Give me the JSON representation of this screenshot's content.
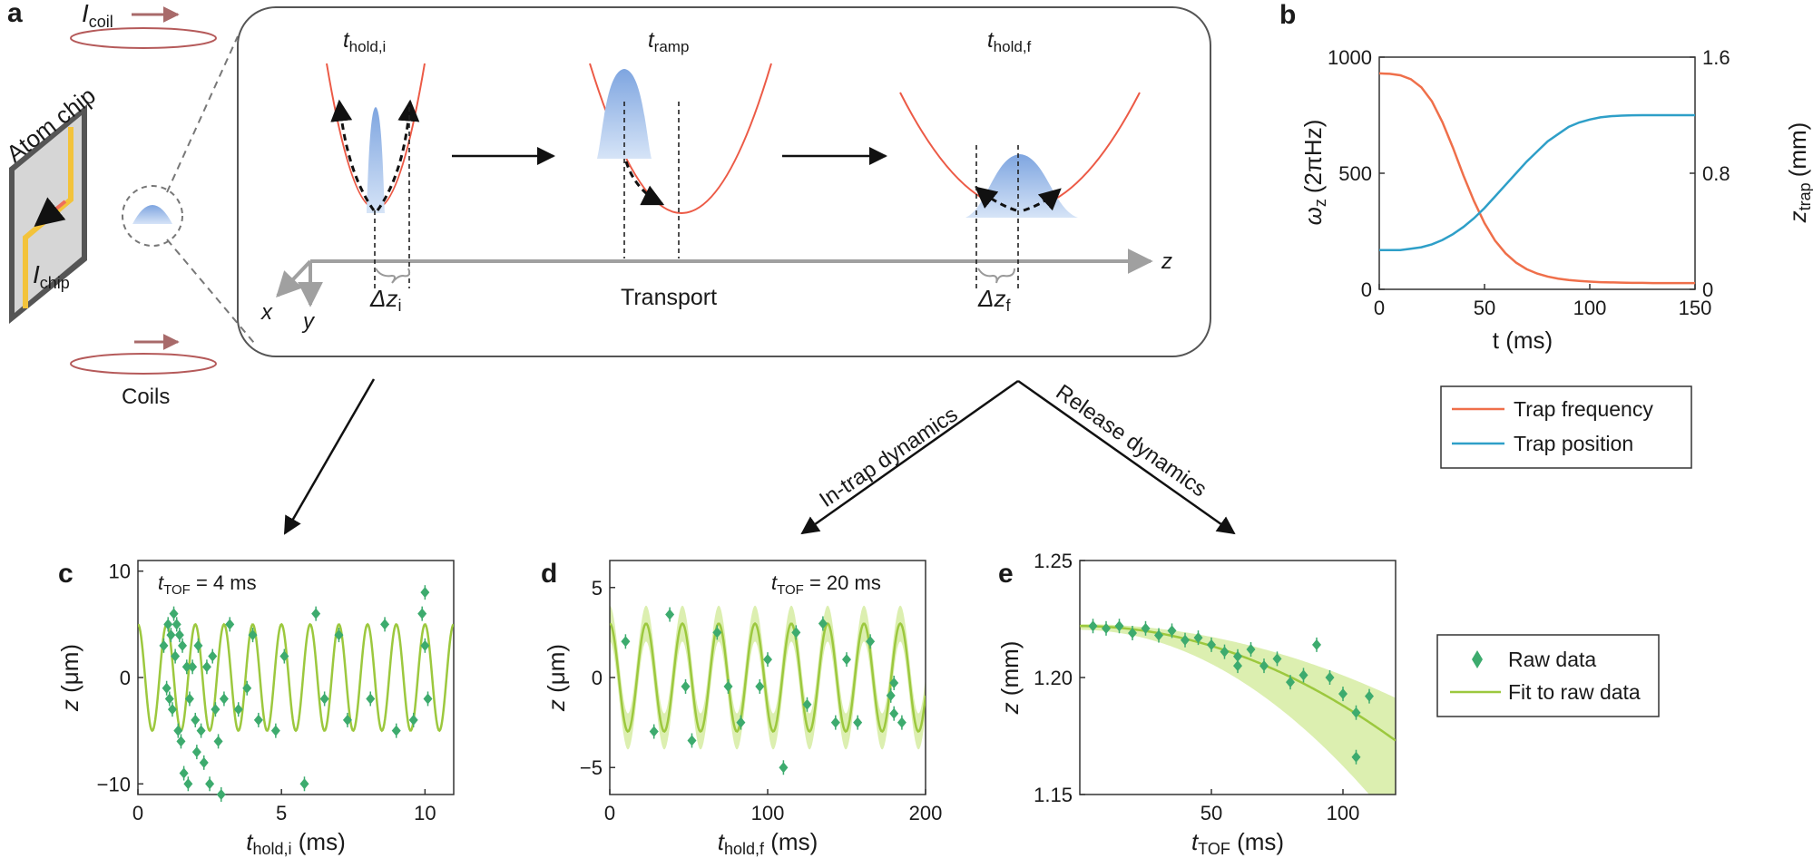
{
  "panel_labels": {
    "a": "a",
    "b": "b",
    "c": "c",
    "d": "d",
    "e": "e"
  },
  "schematic": {
    "i_coil_main": "I",
    "i_coil_sub": "coil",
    "atom_chip": "Atom chip",
    "i_chip_main": "I",
    "i_chip_sub": "chip",
    "coils": "Coils",
    "t_hold_i_main": "t",
    "t_hold_i_sub": "hold,i",
    "t_ramp_main": "t",
    "t_ramp_sub": "ramp",
    "t_hold_f_main": "t",
    "t_hold_f_sub": "hold,f",
    "dz_i_main": "Δz",
    "dz_i_sub": "i",
    "dz_f_main": "Δz",
    "dz_f_sub": "f",
    "transport": "Transport",
    "axis_z": "z",
    "axis_x": "x",
    "axis_y": "y",
    "in_trap": "In-trap dynamics",
    "release": "Release dynamics"
  },
  "colors": {
    "trap_frequency": "#ef6f4a",
    "trap_position": "#2e9fc8",
    "raw": "#3dab6e",
    "fit": "#9cc83e",
    "band": "#dcefb0",
    "trap_curve": "#ec5a46",
    "cloud": "#8fb3e6"
  },
  "legend_b": {
    "trap_frequency": "Trap frequency",
    "trap_position": "Trap position"
  },
  "legend_e": {
    "raw": "Raw data",
    "fit": "Fit to raw data"
  },
  "chart_data": [
    {
      "id": "b",
      "type": "line",
      "xlabel": "t (ms)",
      "ylabel_left": "ω",
      "ylabel_left_sub": "z",
      "ylabel_left_unit": "(2πHz)",
      "ylabel_right": "z",
      "ylabel_right_sub": "trap",
      "ylabel_right_unit": "(mm)",
      "xlim": [
        0,
        150
      ],
      "ylim_left": [
        0,
        1000
      ],
      "ylim_right": [
        0,
        1.6
      ],
      "xticks": [
        0,
        50,
        100,
        150
      ],
      "yticks_left": [
        0,
        500,
        1000
      ],
      "yticks_right": [
        "0",
        "0.8",
        "1.6"
      ],
      "x": [
        0,
        5,
        10,
        15,
        20,
        25,
        30,
        35,
        40,
        45,
        50,
        55,
        60,
        65,
        70,
        75,
        80,
        85,
        90,
        95,
        100,
        105,
        110,
        115,
        120,
        125,
        130,
        135,
        140,
        145,
        150
      ],
      "series": [
        {
          "name": "Trap frequency",
          "axis": "left",
          "values": [
            930,
            928,
            922,
            905,
            870,
            810,
            720,
            610,
            490,
            380,
            285,
            210,
            155,
            115,
            87,
            68,
            55,
            46,
            40,
            36,
            33,
            31,
            30,
            29,
            28,
            28,
            27,
            27,
            27,
            27,
            27
          ]
        },
        {
          "name": "Trap position",
          "axis": "right",
          "values": [
            0.27,
            0.27,
            0.27,
            0.28,
            0.29,
            0.31,
            0.34,
            0.38,
            0.43,
            0.49,
            0.56,
            0.64,
            0.72,
            0.8,
            0.88,
            0.95,
            1.02,
            1.07,
            1.12,
            1.15,
            1.17,
            1.185,
            1.193,
            1.197,
            1.199,
            1.2,
            1.2,
            1.2,
            1.2,
            1.2,
            1.2
          ]
        }
      ]
    },
    {
      "id": "c",
      "type": "scatter",
      "annotation_main": "t",
      "annotation_sub": "TOF",
      "annotation_rest": " = 4 ms",
      "xlabel_main": "t",
      "xlabel_sub": "hold,i",
      "xlabel_unit": " (ms)",
      "ylabel": "z",
      "ylabel_unit": " (μm)",
      "xlim": [
        0,
        11
      ],
      "ylim": [
        -11,
        11
      ],
      "xticks": [
        0,
        5,
        10
      ],
      "yticks": [
        "−10",
        "0",
        "10"
      ],
      "ytick_values": [
        -10,
        0,
        10
      ],
      "fit": {
        "amplitude": 5,
        "period": 1.0,
        "phase": 0.25
      },
      "points": [
        [
          0.9,
          3
        ],
        [
          1.0,
          -1
        ],
        [
          1.05,
          5
        ],
        [
          1.1,
          -2
        ],
        [
          1.15,
          4
        ],
        [
          1.2,
          -3
        ],
        [
          1.25,
          6
        ],
        [
          1.3,
          2
        ],
        [
          1.35,
          5
        ],
        [
          1.4,
          -5
        ],
        [
          1.45,
          4
        ],
        [
          1.5,
          -6
        ],
        [
          1.55,
          3
        ],
        [
          1.6,
          -9
        ],
        [
          1.7,
          1
        ],
        [
          1.75,
          -10
        ],
        [
          1.8,
          -2
        ],
        [
          1.9,
          1
        ],
        [
          2.0,
          -4
        ],
        [
          2.05,
          -7
        ],
        [
          2.1,
          3
        ],
        [
          2.2,
          -5
        ],
        [
          2.3,
          -8
        ],
        [
          2.4,
          1
        ],
        [
          2.5,
          -10
        ],
        [
          2.6,
          2
        ],
        [
          2.7,
          -3
        ],
        [
          2.8,
          -6
        ],
        [
          2.9,
          -11
        ],
        [
          3.0,
          -2
        ],
        [
          3.2,
          5
        ],
        [
          3.5,
          -3
        ],
        [
          3.8,
          -1
        ],
        [
          4.0,
          4
        ],
        [
          4.2,
          -4
        ],
        [
          4.8,
          -5
        ],
        [
          5.1,
          2
        ],
        [
          5.8,
          -10
        ],
        [
          6.2,
          6
        ],
        [
          6.5,
          -2
        ],
        [
          7.0,
          4
        ],
        [
          7.3,
          -4
        ],
        [
          8.1,
          -2
        ],
        [
          8.6,
          5
        ],
        [
          9.0,
          -5
        ],
        [
          9.6,
          -4
        ],
        [
          9.9,
          6
        ],
        [
          10.0,
          8
        ],
        [
          10.0,
          3
        ],
        [
          10.1,
          -2
        ]
      ]
    },
    {
      "id": "d",
      "type": "scatter",
      "annotation_main": "t",
      "annotation_sub": "TOF",
      "annotation_rest": " = 20 ms",
      "xlabel_main": "t",
      "xlabel_sub": "hold,f",
      "xlabel_unit": " (ms)",
      "ylabel": "z",
      "ylabel_unit": " (μm)",
      "xlim": [
        0,
        200
      ],
      "ylim": [
        -6.5,
        6.5
      ],
      "xticks": [
        0,
        100,
        200
      ],
      "yticks": [
        "−5",
        "0",
        "5"
      ],
      "ytick_values": [
        -5,
        0,
        5
      ],
      "fit": {
        "amplitude": 3,
        "period": 23,
        "phase": 0.25,
        "band": 1
      },
      "points": [
        [
          10,
          2
        ],
        [
          28,
          -3
        ],
        [
          38,
          3.5
        ],
        [
          48,
          -0.5
        ],
        [
          52,
          -3.5
        ],
        [
          68,
          2.5
        ],
        [
          75,
          -0.5
        ],
        [
          83,
          -2.5
        ],
        [
          95,
          -0.5
        ],
        [
          100,
          1
        ],
        [
          110,
          -5
        ],
        [
          118,
          2.5
        ],
        [
          125,
          -1.5
        ],
        [
          135,
          3
        ],
        [
          143,
          -2.5
        ],
        [
          150,
          1
        ],
        [
          157,
          -2.5
        ],
        [
          165,
          2
        ],
        [
          178,
          -1
        ],
        [
          180,
          -2
        ],
        [
          185,
          -2.5
        ],
        [
          180,
          -0.3
        ]
      ]
    },
    {
      "id": "e",
      "type": "scatter",
      "xlabel_main": "t",
      "xlabel_sub": "TOF",
      "xlabel_unit": " (ms)",
      "ylabel": "z",
      "ylabel_unit": " (mm)",
      "xlim": [
        0,
        120
      ],
      "ylim": [
        1.15,
        1.25
      ],
      "xticks": [
        50,
        100
      ],
      "yticks": [
        "1.15",
        "1.20",
        "1.25"
      ],
      "ytick_values": [
        1.15,
        1.2,
        1.25
      ],
      "fit": {
        "z0": 1.222,
        "curvature": 3.4e-06
      },
      "points": [
        [
          5,
          1.222
        ],
        [
          10,
          1.221
        ],
        [
          15,
          1.222
        ],
        [
          20,
          1.219
        ],
        [
          25,
          1.221
        ],
        [
          30,
          1.218
        ],
        [
          35,
          1.22
        ],
        [
          40,
          1.216
        ],
        [
          45,
          1.217
        ],
        [
          50,
          1.214
        ],
        [
          55,
          1.211
        ],
        [
          60,
          1.205
        ],
        [
          60,
          1.209
        ],
        [
          65,
          1.212
        ],
        [
          70,
          1.205
        ],
        [
          75,
          1.208
        ],
        [
          80,
          1.198
        ],
        [
          85,
          1.201
        ],
        [
          90,
          1.214
        ],
        [
          95,
          1.2
        ],
        [
          100,
          1.193
        ],
        [
          105,
          1.166
        ],
        [
          105,
          1.185
        ],
        [
          110,
          1.192
        ]
      ]
    }
  ]
}
